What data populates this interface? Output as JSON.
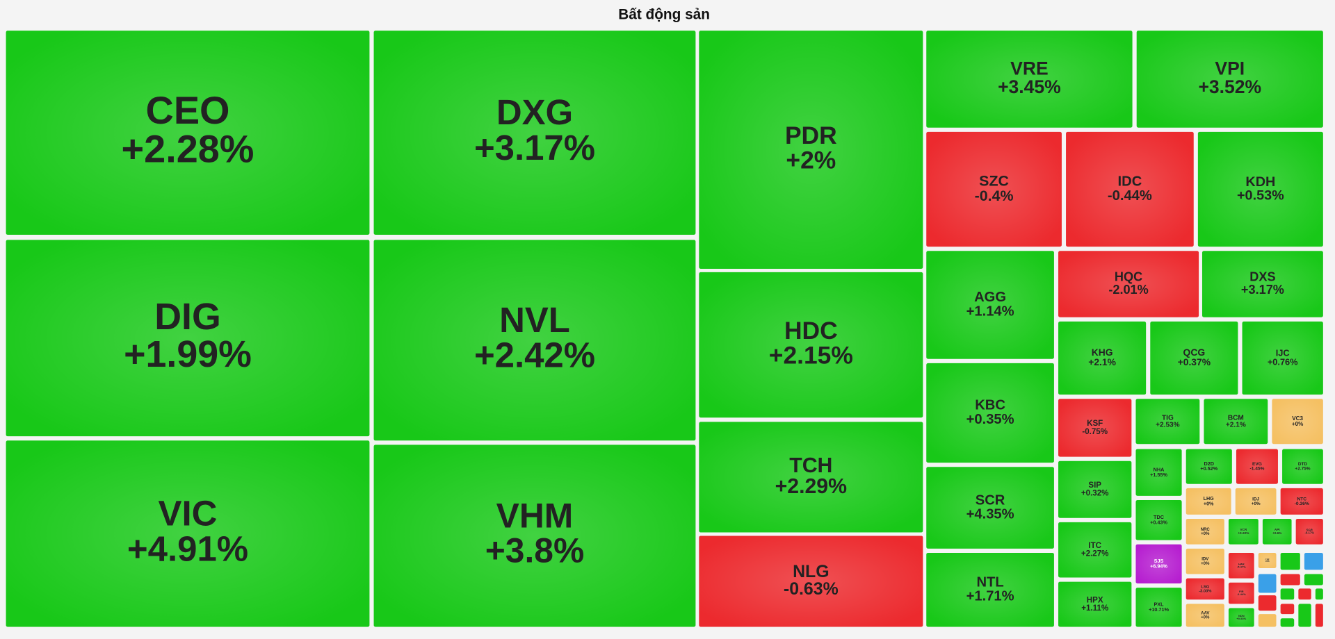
{
  "chart_data": {
    "type": "treemap",
    "title": "Bất động sản",
    "categories": [
      "CEO",
      "DXG",
      "PDR",
      "VRE",
      "VPI",
      "SZC",
      "IDC",
      "KDH",
      "DIG",
      "NVL",
      "HDC",
      "AGG",
      "HQC",
      "DXS",
      "KHG",
      "QCG",
      "IJC",
      "KBC",
      "VIC",
      "VHM",
      "TCH",
      "NLG",
      "SCR",
      "NTL",
      "KSF",
      "TIG",
      "BCM",
      "VC3",
      "SIP",
      "ITC",
      "HPX",
      "NHA",
      "TDC",
      "SJS",
      "PXL",
      "D2D",
      "EVG",
      "DTD",
      "LHG",
      "IDJ",
      "NTC",
      "NRC",
      "VCR",
      "API",
      "SGR",
      "IDV",
      "HAR",
      "CRE",
      "LSG",
      "FIR",
      "AAV",
      "NDN"
    ],
    "values": [
      2.28,
      3.17,
      2,
      3.45,
      3.52,
      -0.4,
      -0.44,
      0.53,
      1.99,
      2.42,
      2.15,
      1.14,
      -2.01,
      3.17,
      2.1,
      0.37,
      0.76,
      0.35,
      4.91,
      3.8,
      2.29,
      -0.63,
      4.35,
      1.71,
      -0.75,
      2.53,
      2.1,
      0,
      0.32,
      2.27,
      1.11,
      1.55,
      0.43,
      6.94,
      10.71,
      0.52,
      -1.45,
      2.75,
      0,
      0,
      -0.36,
      0,
      0.22,
      2.6,
      -0.17,
      0,
      -5.47,
      0,
      -3.03,
      -1.44,
      0,
      0.53
    ],
    "value_labels": [
      "+2.28%",
      "+3.17%",
      "+2%",
      "+3.45%",
      "+3.52%",
      "-0.4%",
      "-0.44%",
      "+0.53%",
      "+1.99%",
      "+2.42%",
      "+2.15%",
      "+1.14%",
      "-2.01%",
      "+3.17%",
      "+2.1%",
      "+0.37%",
      "+0.76%",
      "+0.35%",
      "+4.91%",
      "+3.8%",
      "+2.29%",
      "-0.63%",
      "+4.35%",
      "+1.71%",
      "-0.75%",
      "+2.53%",
      "+2.1%",
      "+0%",
      "+0.32%",
      "+2.27%",
      "+1.11%",
      "+1.55%",
      "+0.43%",
      "+6.94%",
      "+10.71%",
      "+0.52%",
      "-1.45%",
      "+2.75%",
      "+0%",
      "+0%",
      "-0.36%",
      "+0%",
      "+0.22%",
      "+2.6%",
      "-0.17%",
      "+0%",
      "-5.47%",
      "+0%",
      "-3.03%",
      "-1.44%",
      "+0%",
      "+0.53%"
    ],
    "colors": [
      "#18c818",
      "#18c818",
      "#18c818",
      "#18c818",
      "#18c818",
      "#ec2a2e",
      "#ec2a2e",
      "#18c818",
      "#18c818",
      "#18c818",
      "#18c818",
      "#18c818",
      "#ec2a2e",
      "#18c818",
      "#18c818",
      "#18c818",
      "#18c818",
      "#18c818",
      "#18c818",
      "#18c818",
      "#18c818",
      "#ec2a2e",
      "#18c818",
      "#18c818",
      "#ec2a2e",
      "#18c818",
      "#18c818",
      "#f5c062",
      "#18c818",
      "#18c818",
      "#18c818",
      "#18c818",
      "#18c818",
      "#b61ed0",
      "#18c818",
      "#18c818",
      "#ec2a2e",
      "#18c818",
      "#f5c062",
      "#f5c062",
      "#ec2a2e",
      "#f5c062",
      "#18c818",
      "#18c818",
      "#ec2a2e",
      "#f5c062",
      "#ec2a2e",
      "#f5c062",
      "#ec2a2e",
      "#ec2a2e",
      "#f5c062",
      "#18c818"
    ]
  }
}
